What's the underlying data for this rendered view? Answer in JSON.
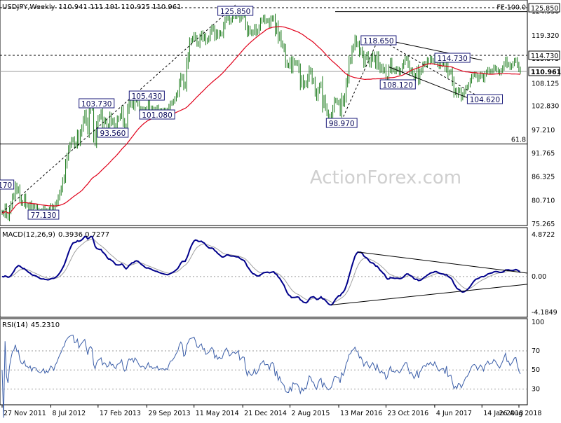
{
  "chart_data": {
    "type": "line",
    "symbol": "USDJPY",
    "timeframe": "Weekly",
    "quote": "110.941 111.191 110.925 110.961",
    "watermark": "ActionForex.com",
    "colors": {
      "bars": "#1a7a1a",
      "ma": "#e0001a",
      "macd": "#00008b",
      "signal": "#a0a0a0",
      "rsi": "#3b5ea8",
      "trend": "#000000",
      "box_border": "#1a1a7a",
      "current_tag": "#0a0a0a"
    },
    "x_ticks": [
      "27 Nov 2011",
      "8 Jul 2012",
      "17 Feb 2013",
      "29 Sep 2013",
      "11 May 2014",
      "21 Dec 2014",
      "2 Aug 2015",
      "13 Mar 2016",
      "23 Oct 2016",
      "4 Jun 2017",
      "14 Jan 2018",
      "26 Aug 2018"
    ],
    "price_panel": {
      "ylim": [
        75.265,
        127.0
      ],
      "y_ticks": [
        "124.930",
        "119.320",
        "113.875",
        "108.125",
        "102.830",
        "97.210",
        "91.765",
        "86.325",
        "80.710",
        "75.265"
      ],
      "levels": [
        {
          "value": 125.85,
          "label": "125.850",
          "style": "dashed"
        },
        {
          "value": 124.93,
          "label": "FE 100.0",
          "style": "solid"
        },
        {
          "value": 114.73,
          "label": "114.730",
          "style": "dashed"
        },
        {
          "value": 110.961,
          "label": "110.961",
          "style": "solid-gray"
        },
        {
          "value": 94.0,
          "label": "61.8",
          "style": "solid"
        }
      ],
      "annotations": [
        {
          "text": "125.850",
          "date_index": 158
        },
        {
          "text": "118.650",
          "date_index": 255
        },
        {
          "text": "114.730",
          "date_index": 305
        },
        {
          "text": "108.120",
          "date_index": 268
        },
        {
          "text": "104.620",
          "date_index": 327
        },
        {
          "text": "103.730",
          "date_index": 64
        },
        {
          "text": "105.430",
          "date_index": 98
        },
        {
          "text": "101.080",
          "date_index": 105
        },
        {
          "text": "93.560",
          "date_index": 75
        },
        {
          "text": "98.970",
          "date_index": 230
        },
        {
          "text": "77.130",
          "date_index": 28
        },
        {
          "text": "170",
          "date_index": 2
        }
      ],
      "close_series": [
        78.0,
        77.6,
        79.2,
        77.5,
        76.8,
        78.4,
        79.8,
        81.5,
        82.0,
        84.2,
        83.0,
        83.5,
        81.4,
        80.3,
        80.1,
        81.5,
        79.8,
        79.7,
        79.2,
        79.9,
        78.3,
        79.4,
        79.5,
        79.3,
        78.5,
        78.2,
        78.0,
        78.4,
        79.0,
        77.9,
        78.4,
        78.0,
        78.7,
        79.5,
        79.2,
        78.6,
        79.8,
        80.4,
        81.5,
        82.6,
        83.6,
        85.3,
        86.2,
        89.2,
        91.0,
        92.8,
        93.8,
        94.9,
        95.0,
        93.6,
        94.0,
        96.3,
        94.5,
        96.5,
        97.8,
        99.6,
        101.1,
        99.2,
        97.2,
        101.8,
        103.1,
        102.4,
        96.5,
        94.5,
        97.9,
        99.8,
        100.4,
        101.4,
        98.3,
        99.6,
        99.2,
        97.6,
        98.2,
        100.5,
        99.0,
        99.5,
        98.3,
        97.7,
        99.7,
        100.0,
        100.6,
        101.9,
        99.2,
        97.6,
        98.2,
        101.9,
        103.6,
        103.1,
        104.1,
        102.8,
        105.0,
        104.3,
        103.4,
        102.3,
        101.8,
        102.2,
        102.0,
        101.3,
        102.2,
        103.5,
        102.2,
        102.4,
        101.8,
        102.1,
        102.0,
        102.5,
        101.5,
        101.8,
        101.8,
        101.9,
        101.6,
        101.9,
        101.7,
        102.7,
        103.5,
        103.6,
        104.0,
        104.6,
        105.4,
        106.0,
        108.2,
        109.8,
        109.4,
        107.5,
        108.0,
        112.5,
        114.5,
        117.6,
        118.2,
        118.7,
        119.5,
        118.7,
        117.5,
        117.3,
        118.9,
        119.8,
        118.6,
        119.2,
        117.9,
        118.3,
        118.8,
        120.2,
        121.2,
        120.8,
        119.0,
        120.1,
        119.2,
        120.0,
        119.7,
        119.7,
        121.6,
        123.0,
        124.1,
        123.4,
        122.5,
        123.0,
        123.8,
        124.1,
        123.8,
        124.2,
        124.9,
        123.2,
        123.7,
        124.2,
        124.1,
        121.7,
        119.9,
        121.0,
        120.2,
        119.8,
        120.2,
        121.3,
        120.0,
        120.4,
        121.3,
        122.7,
        123.0,
        123.6,
        122.7,
        122.8,
        122.8,
        121.8,
        123.2,
        123.5,
        123.2,
        120.4,
        121.6,
        118.7,
        119.6,
        117.6,
        116.9,
        116.1,
        113.1,
        112.4,
        112.3,
        113.5,
        111.5,
        113.5,
        112.9,
        113.0,
        112.8,
        111.4,
        108.0,
        109.3,
        107.6,
        108.3,
        107.9,
        109.5,
        111.4,
        110.8,
        108.9,
        108.6,
        106.2,
        104.9,
        106.5,
        107.6,
        108.0,
        103.2,
        104.6,
        102.7,
        101.3,
        100.2,
        100.5,
        100.9,
        102.3,
        104.1,
        104.2,
        103.7,
        103.6,
        101.5,
        104.6,
        103.5,
        105.0,
        108.1,
        109.6,
        113.2,
        113.8,
        116.0,
        116.8,
        118.6,
        117.4,
        117.2,
        115.3,
        116.0,
        114.8,
        112.8,
        114.2,
        114.9,
        113.6,
        112.6,
        113.9,
        114.9,
        113.8,
        112.4,
        114.6,
        112.4,
        111.3,
        112.1,
        111.1,
        111.4,
        108.5,
        109.2,
        111.5,
        113.2,
        111.3,
        111.3,
        110.9,
        111.6,
        111.4,
        110.7,
        111.2,
        112.2,
        113.1,
        114.0,
        114.0,
        112.6,
        110.9,
        111.3,
        110.6,
        109.3,
        110.0,
        111.4,
        108.9,
        110.7,
        111.3,
        112.5,
        112.8,
        112.5,
        113.6,
        113.2,
        114.0,
        113.5,
        113.2,
        114.3,
        113.5,
        112.6,
        112.1,
        112.5,
        112.7,
        112.7,
        111.6,
        113.3,
        110.6,
        110.8,
        110.9,
        108.6,
        106.0,
        106.5,
        105.5,
        106.6,
        106.4,
        104.8,
        105.5,
        106.3,
        107.1,
        107.3,
        107.9,
        108.8,
        109.7,
        110.2,
        110.3,
        110.0,
        109.1,
        109.7,
        110.3,
        109.9,
        109.1,
        110.3,
        110.8,
        111.4,
        110.8,
        111.0,
        111.1,
        111.9,
        111.7,
        111.3,
        110.9,
        110.6,
        111.2,
        111.8,
        112.7,
        113.7,
        112.5,
        112.6,
        111.9,
        112.3,
        112.8,
        113.5,
        113.6,
        112.5,
        111.5,
        110.96
      ],
      "ma_series_note": "moving average computed by script"
    },
    "macd_panel": {
      "label": "MACD(12,26,9)",
      "values": "0.3936 0.7277",
      "y_ticks": [
        "4.8722",
        "0.00",
        "-4.1849"
      ],
      "ylim": [
        -4.5,
        5.3
      ]
    },
    "rsi_panel": {
      "label": "RSI(14)",
      "value": "45.2310",
      "y_ticks": [
        "100",
        "70",
        "50",
        "30"
      ],
      "ylim": [
        15,
        100
      ]
    }
  }
}
